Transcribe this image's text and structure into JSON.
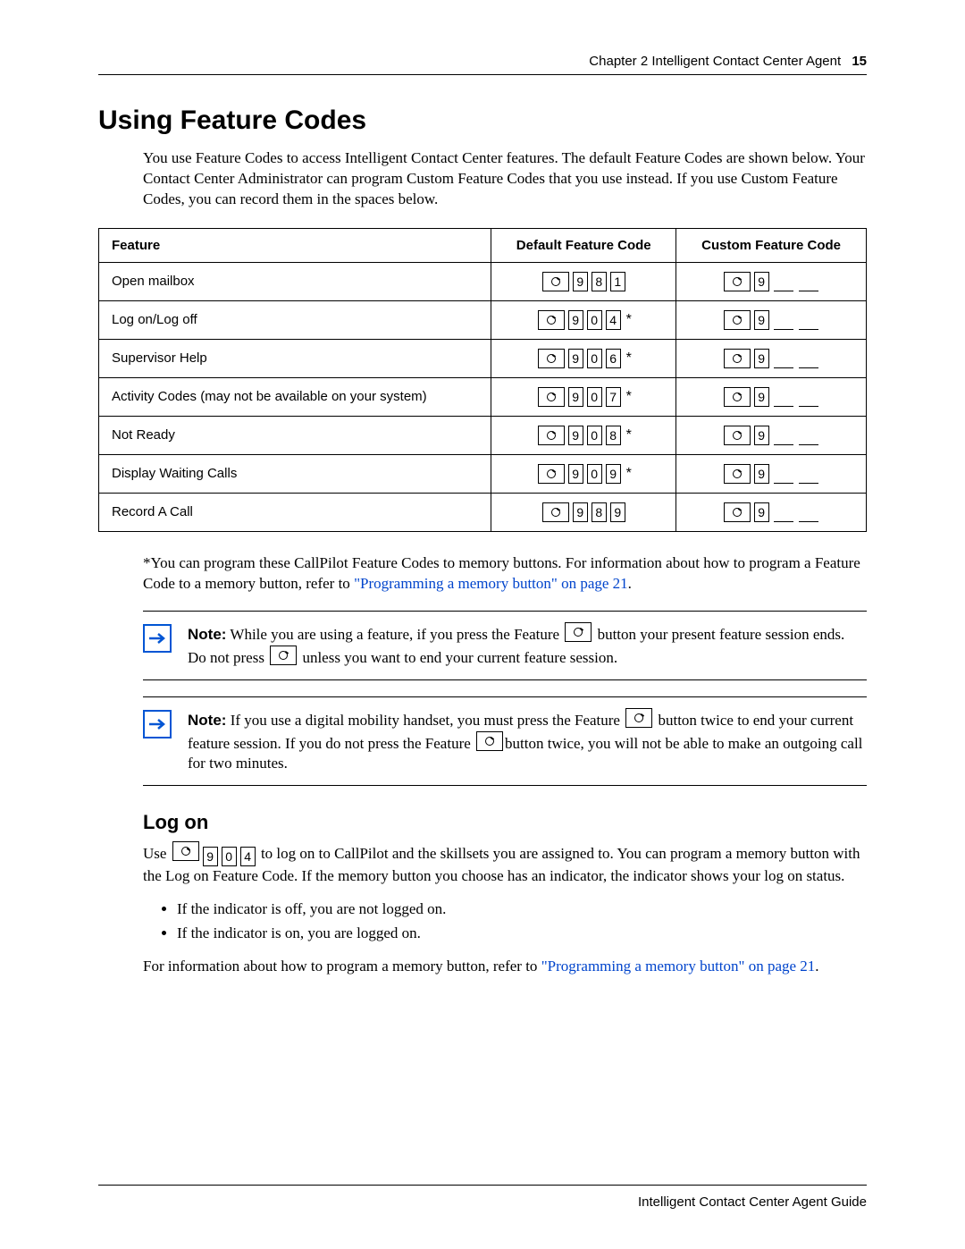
{
  "header": {
    "chapter": "Chapter 2  Intelligent Contact Center Agent",
    "page": "15"
  },
  "section_title": "Using Feature Codes",
  "intro": "You use Feature Codes to access Intelligent Contact Center features. The default Feature Codes are shown below. Your Contact Center Administrator can program Custom Feature Codes that you use instead. If you use Custom Feature Codes, you can record them in the spaces below.",
  "table": {
    "headers": {
      "c1": "Feature",
      "c2": "Default Feature Code",
      "c3": "Custom Feature Code"
    },
    "rows": [
      {
        "feature": "Open mailbox",
        "digits": [
          "9",
          "8",
          "1"
        ],
        "star": false
      },
      {
        "feature": "Log on/Log off",
        "digits": [
          "9",
          "0",
          "4"
        ],
        "star": true
      },
      {
        "feature": "Supervisor Help",
        "digits": [
          "9",
          "0",
          "6"
        ],
        "star": true
      },
      {
        "feature": "Activity Codes (may not be available on your system)",
        "digits": [
          "9",
          "0",
          "7"
        ],
        "star": true
      },
      {
        "feature": "Not Ready",
        "digits": [
          "9",
          "0",
          "8"
        ],
        "star": true
      },
      {
        "feature": "Display Waiting Calls",
        "digits": [
          "9",
          "0",
          "9"
        ],
        "star": true
      },
      {
        "feature": "Record A Call",
        "digits": [
          "9",
          "8",
          "9"
        ],
        "star": false
      }
    ]
  },
  "after_table_1": "*You can program these CallPilot Feature Codes to memory buttons. For information about how to program a Feature Code to a memory button, refer to ",
  "link1": "\"Programming a memory button\" on page 21",
  "after_table_2": ".",
  "note1": {
    "label": "Note:",
    "t1": " While you are using a feature, if you press the Feature ",
    "t2": " button your present feature session ends. Do not press ",
    "t3": " unless you want to end your current feature session."
  },
  "note2": {
    "label": "Note:",
    "t1": " If you use a digital mobility handset, you must press the Feature ",
    "t2": " button twice to end your current feature session. If you do not press the Feature ",
    "t3": "button twice, you will not be able to make an outgoing call for two minutes."
  },
  "logon": {
    "heading": "Log on",
    "p1a": "Use ",
    "p1b": " to log on to CallPilot and the skillsets you are assigned to. You can program a memory button with the Log on Feature Code. If the memory button you choose has an indicator, the indicator shows your log on status.",
    "bullets": [
      "If the indicator is off, you are not logged on.",
      "If the indicator is on, you are logged on."
    ],
    "p2a": "For information about how to program a memory button, refer to ",
    "link": "\"Programming a memory button\" on page 21",
    "p2b": "."
  },
  "footer": "Intelligent Contact Center Agent Guide",
  "colors": {
    "link": "#0044cc",
    "note_border": "#0055d4"
  }
}
